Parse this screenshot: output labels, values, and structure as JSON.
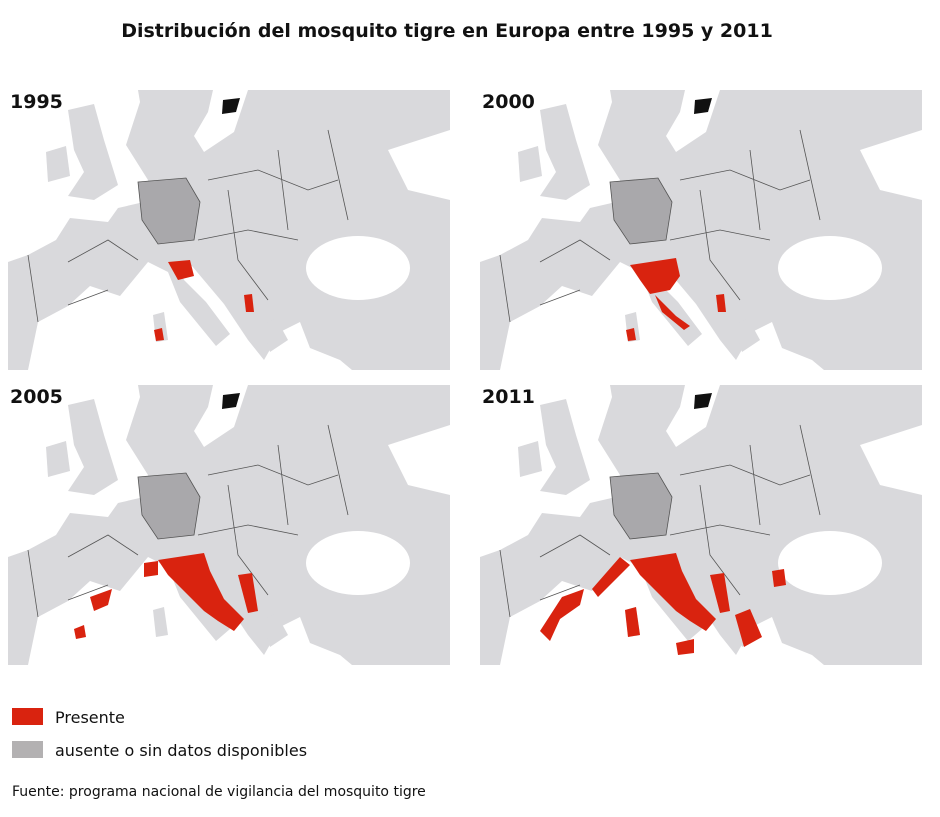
{
  "title": "Distribución del mosquito tigre en Europa entre 1995 y 2011",
  "maps": [
    {
      "year": "1995"
    },
    {
      "year": "2000"
    },
    {
      "year": "2005"
    },
    {
      "year": "2011"
    }
  ],
  "legend": [
    {
      "label": "Presente",
      "color": "#d9230f"
    },
    {
      "label": "ausente o sin datos disponibles",
      "color": "#b3b1b2"
    }
  ],
  "source": "Fuente: programa nacional de vigilancia del mosquito tigre"
}
